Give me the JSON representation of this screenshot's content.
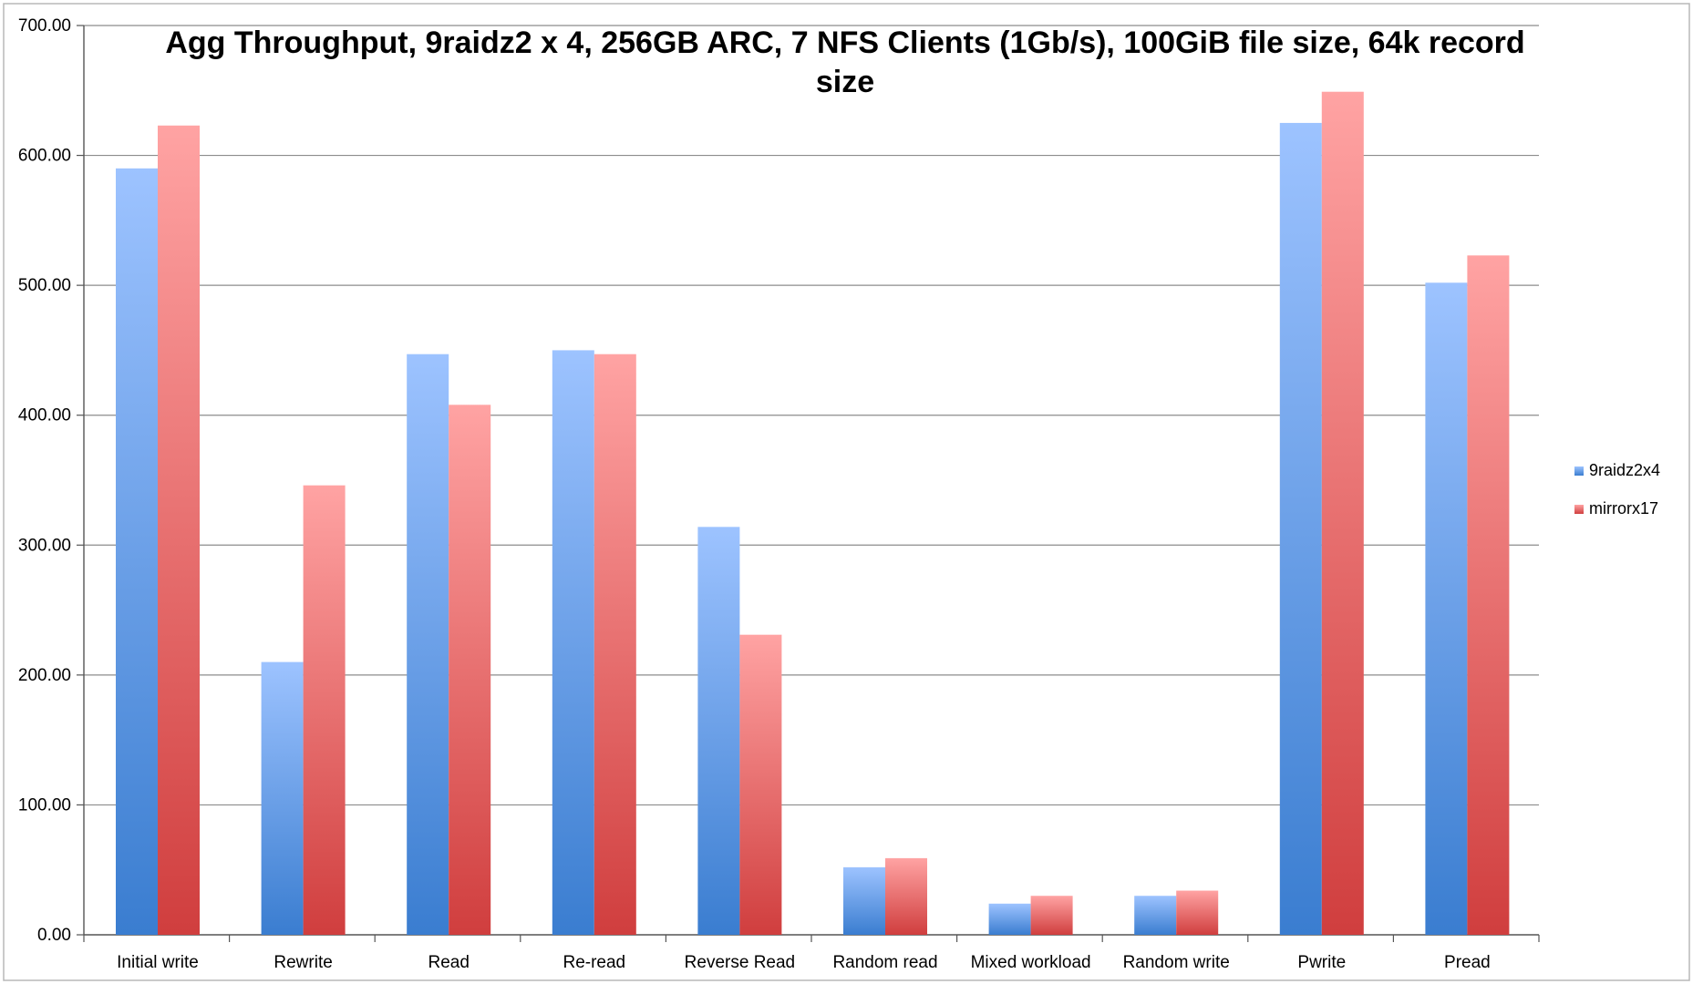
{
  "chart_data": {
    "type": "bar",
    "title": "Agg Throughput, 9raidz2 x 4, 256GB ARC, 7 NFS Clients (1Gb/s), 100GiB file size, 64k record size",
    "title_lines": [
      "Agg Throughput, 9raidz2 x 4, 256GB ARC, 7 NFS Clients (1Gb/s), 100GiB file size, 64k record",
      "size"
    ],
    "xlabel": "",
    "ylabel": "",
    "ylim": [
      0,
      700
    ],
    "yticks": [
      "0.00",
      "100.00",
      "200.00",
      "300.00",
      "400.00",
      "500.00",
      "600.00",
      "700.00"
    ],
    "grid": true,
    "legend_position": "right",
    "categories": [
      "Initial write",
      "Rewrite",
      "Read",
      "Re-read",
      "Reverse Read",
      "Random read",
      "Mixed workload",
      "Random write",
      "Pwrite",
      "Pread"
    ],
    "series": [
      {
        "name": "9raidz2x4",
        "color_top": "#9dc3ff",
        "color_bottom": "#3a7dd0",
        "values": [
          590,
          210,
          447,
          450,
          314,
          52,
          24,
          30,
          625,
          502
        ]
      },
      {
        "name": "mirrorx17",
        "color_top": "#ffa3a3",
        "color_bottom": "#d03e3e",
        "values": [
          623,
          346,
          408,
          447,
          231,
          59,
          30,
          34,
          649,
          523
        ]
      }
    ]
  }
}
